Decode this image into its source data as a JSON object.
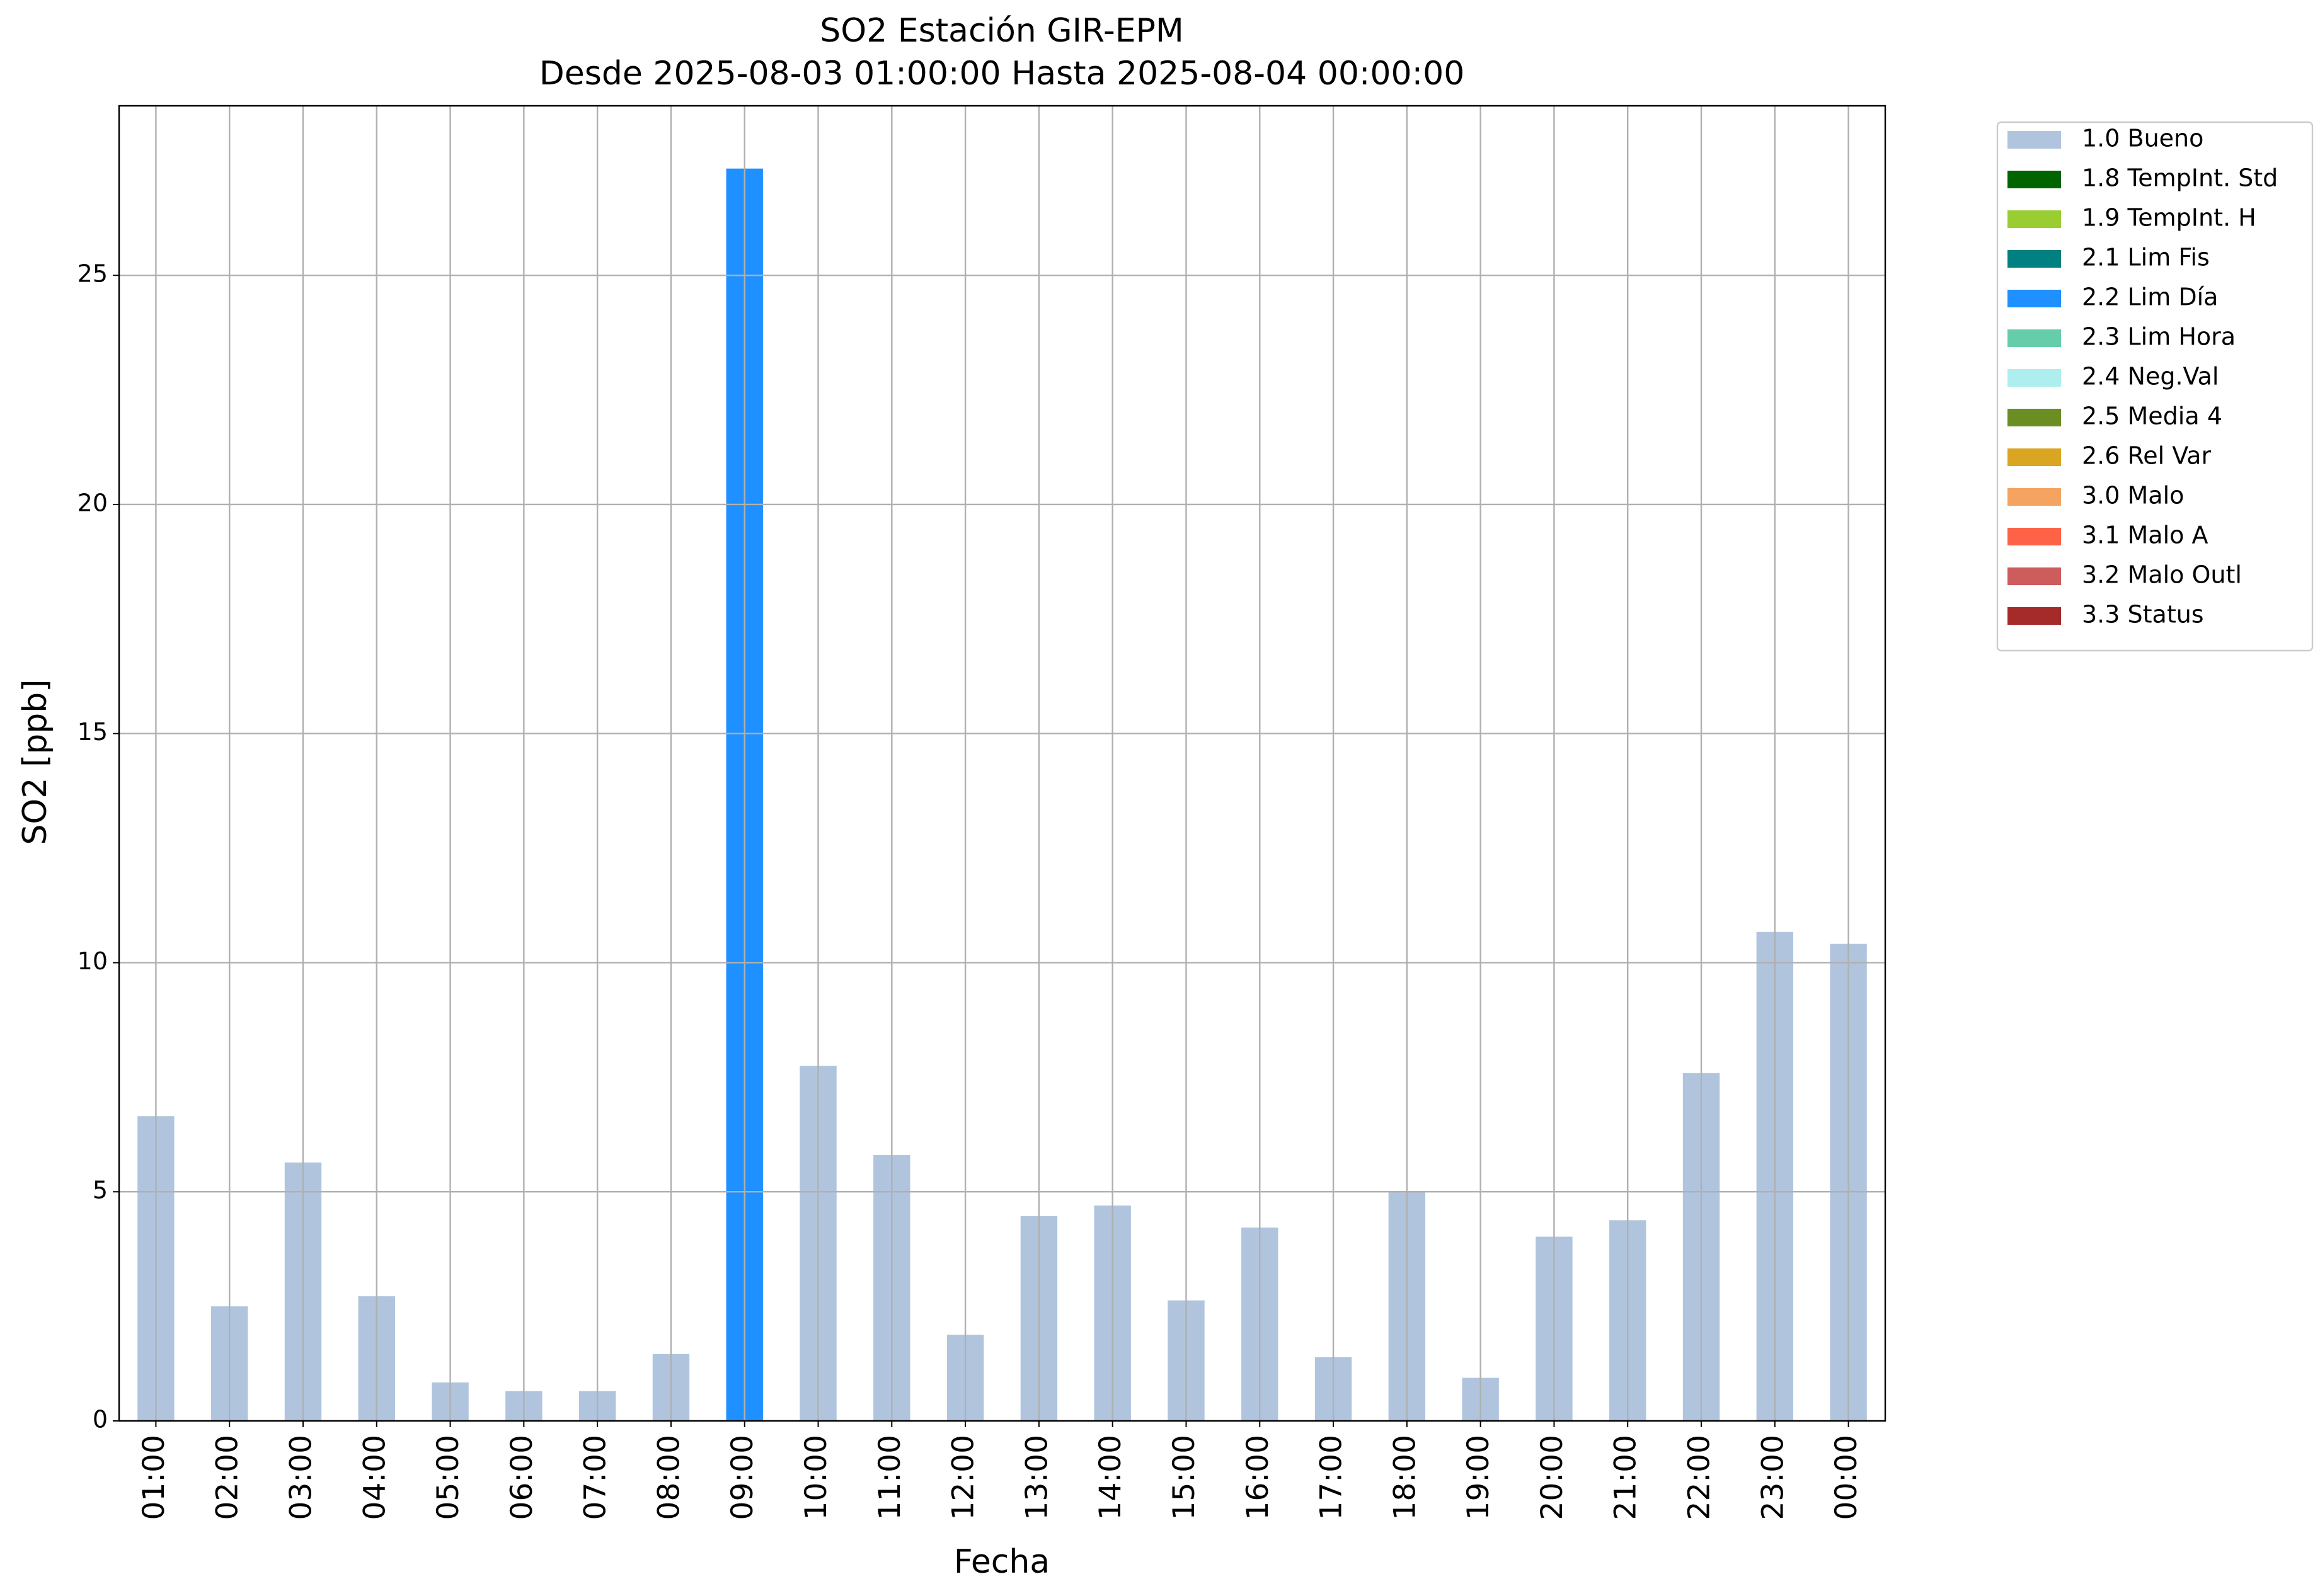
{
  "chart_data": {
    "type": "bar",
    "stacked": true,
    "title": "SO2 Estación GIR-EPM",
    "subtitle": "Desde 2025-08-03 01:00:00 Hasta 2025-08-04 00:00:00",
    "x_label": "Fecha",
    "y_label": "SO2 [ppb]",
    "categories": [
      "01:00",
      "02:00",
      "03:00",
      "04:00",
      "05:00",
      "06:00",
      "07:00",
      "08:00",
      "09:00",
      "10:00",
      "11:00",
      "12:00",
      "13:00",
      "14:00",
      "15:00",
      "16:00",
      "17:00",
      "18:00",
      "19:00",
      "20:00",
      "21:00",
      "22:00",
      "23:00",
      "00:00"
    ],
    "series": [
      {
        "name": "1.0 Bueno",
        "color": "#b0c4de",
        "values": [
          6.65,
          2.5,
          5.64,
          2.72,
          0.84,
          0.65,
          0.65,
          1.46,
          null,
          7.75,
          5.8,
          1.88,
          4.47,
          4.7,
          2.63,
          4.22,
          1.39,
          5.0,
          0.94,
          4.02,
          4.38,
          7.59,
          10.67,
          10.41
        ]
      },
      {
        "name": "1.8 TempInt. Std",
        "color": "#006400",
        "values": [
          null,
          null,
          null,
          null,
          null,
          null,
          null,
          null,
          null,
          null,
          null,
          null,
          null,
          null,
          null,
          null,
          null,
          null,
          null,
          null,
          null,
          null,
          null,
          null
        ]
      },
      {
        "name": "1.9 TempInt. H",
        "color": "#9acd32",
        "values": [
          null,
          null,
          null,
          null,
          null,
          null,
          null,
          null,
          null,
          null,
          null,
          null,
          null,
          null,
          null,
          null,
          null,
          null,
          null,
          null,
          null,
          null,
          null,
          null
        ]
      },
      {
        "name": "2.1 Lim Fis",
        "color": "#008080",
        "values": [
          null,
          null,
          null,
          null,
          null,
          null,
          null,
          null,
          null,
          null,
          null,
          null,
          null,
          null,
          null,
          null,
          null,
          null,
          null,
          null,
          null,
          null,
          null,
          null
        ]
      },
      {
        "name": "2.2 Lim Día",
        "color": "#1e90ff",
        "values": [
          null,
          null,
          null,
          null,
          null,
          null,
          null,
          null,
          27.33,
          null,
          null,
          null,
          null,
          null,
          null,
          null,
          null,
          null,
          null,
          null,
          null,
          null,
          null,
          null
        ]
      },
      {
        "name": "2.3 Lim Hora",
        "color": "#66cdaa",
        "values": [
          null,
          null,
          null,
          null,
          null,
          null,
          null,
          null,
          null,
          null,
          null,
          null,
          null,
          null,
          null,
          null,
          null,
          null,
          null,
          null,
          null,
          null,
          null,
          null
        ]
      },
      {
        "name": "2.4 Neg.Val",
        "color": "#afeeee",
        "values": [
          null,
          null,
          null,
          null,
          null,
          null,
          null,
          null,
          null,
          null,
          null,
          null,
          null,
          null,
          null,
          null,
          null,
          null,
          null,
          null,
          null,
          null,
          null,
          null
        ]
      },
      {
        "name": "2.5 Media 4",
        "color": "#6b8e23",
        "values": [
          null,
          null,
          null,
          null,
          null,
          null,
          null,
          null,
          null,
          null,
          null,
          null,
          null,
          null,
          null,
          null,
          null,
          null,
          null,
          null,
          null,
          null,
          null,
          null
        ]
      },
      {
        "name": "2.6 Rel Var",
        "color": "#daa520",
        "values": [
          null,
          null,
          null,
          null,
          null,
          null,
          null,
          null,
          null,
          null,
          null,
          null,
          null,
          null,
          null,
          null,
          null,
          null,
          null,
          null,
          null,
          null,
          null,
          null
        ]
      },
      {
        "name": "3.0 Malo",
        "color": "#f4a460",
        "values": [
          null,
          null,
          null,
          null,
          null,
          null,
          null,
          null,
          null,
          null,
          null,
          null,
          null,
          null,
          null,
          null,
          null,
          null,
          null,
          null,
          null,
          null,
          null,
          null
        ]
      },
      {
        "name": "3.1 Malo A",
        "color": "#ff6347",
        "values": [
          null,
          null,
          null,
          null,
          null,
          null,
          null,
          null,
          null,
          null,
          null,
          null,
          null,
          null,
          null,
          null,
          null,
          null,
          null,
          null,
          null,
          null,
          null,
          null
        ]
      },
      {
        "name": "3.2 Malo Outl",
        "color": "#cd5c5c",
        "values": [
          null,
          null,
          null,
          null,
          null,
          null,
          null,
          null,
          null,
          null,
          null,
          null,
          null,
          null,
          null,
          null,
          null,
          null,
          null,
          null,
          null,
          null,
          null,
          null
        ]
      },
      {
        "name": "3.3 Status",
        "color": "#a52a2a",
        "values": [
          null,
          null,
          null,
          null,
          null,
          null,
          null,
          null,
          null,
          null,
          null,
          null,
          null,
          null,
          null,
          null,
          null,
          null,
          null,
          null,
          null,
          null,
          null,
          null
        ]
      }
    ],
    "ylim": [
      0,
      28.7
    ],
    "yticks": [
      0,
      5,
      10,
      15,
      20,
      25
    ],
    "grid": true,
    "legend": "right"
  }
}
